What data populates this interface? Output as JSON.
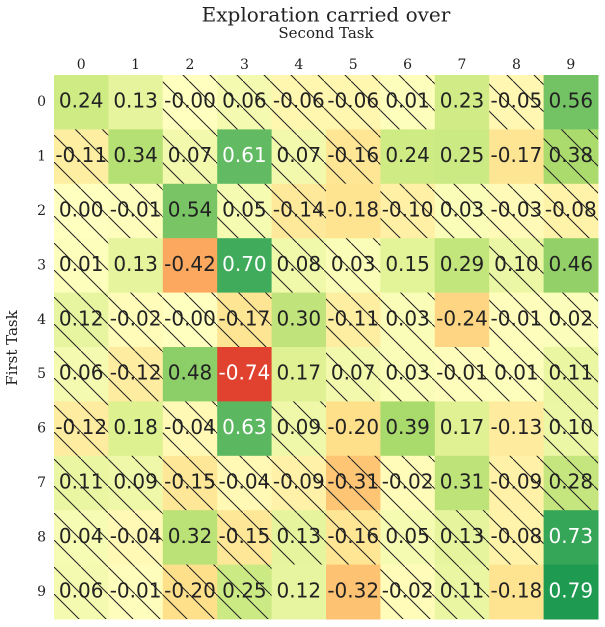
{
  "chart_data": {
    "type": "heatmap",
    "title": "Exploration carried over",
    "x_label": "Second Task",
    "y_label": "First Task",
    "x_categories": [
      "0",
      "1",
      "2",
      "3",
      "4",
      "5",
      "6",
      "7",
      "8",
      "9"
    ],
    "y_categories": [
      "0",
      "1",
      "2",
      "3",
      "4",
      "5",
      "6",
      "7",
      "8",
      "9"
    ],
    "values": [
      [
        0.24,
        0.13,
        0,
        0.06,
        -0.06,
        -0.06,
        0.01,
        0.23,
        -0.05,
        0.56
      ],
      [
        -0.11,
        0.34,
        0.07,
        0.61,
        0.07,
        -0.16,
        0.24,
        0.25,
        -0.17,
        0.38
      ],
      [
        0,
        -0.01,
        0.54,
        0.05,
        -0.14,
        -0.18,
        -0.1,
        0.03,
        -0.03,
        -0.08
      ],
      [
        0.01,
        0.13,
        -0.42,
        0.7,
        0.08,
        0.03,
        0.15,
        0.29,
        0.1,
        0.46
      ],
      [
        0.12,
        -0.02,
        0,
        -0.17,
        0.3,
        -0.11,
        0.03,
        -0.24,
        -0.01,
        0.02
      ],
      [
        0.06,
        -0.12,
        0.48,
        -0.74,
        0.17,
        0.07,
        0.03,
        -0.01,
        0.01,
        0.11
      ],
      [
        -0.12,
        0.18,
        -0.04,
        0.63,
        0.09,
        -0.2,
        0.39,
        0.17,
        -0.13,
        0.1
      ],
      [
        0.11,
        0.09,
        -0.15,
        -0.04,
        -0.09,
        -0.31,
        -0.02,
        0.31,
        -0.09,
        0.28
      ],
      [
        0.04,
        -0.04,
        0.32,
        -0.15,
        0.13,
        -0.16,
        0.05,
        0.13,
        -0.08,
        0.73
      ],
      [
        0.06,
        -0.01,
        -0.2,
        0.25,
        0.12,
        -0.32,
        -0.02,
        0.11,
        -0.18,
        0.79
      ]
    ],
    "value_labels": [
      [
        "0.24",
        "0.13",
        "-0.00",
        "0.06",
        "-0.06",
        "-0.06",
        "0.01",
        "0.23",
        "-0.05",
        "0.56"
      ],
      [
        "-0.11",
        "0.34",
        "0.07",
        "0.61",
        "0.07",
        "-0.16",
        "0.24",
        "0.25",
        "-0.17",
        "0.38"
      ],
      [
        "0.00",
        "-0.01",
        "0.54",
        "0.05",
        "-0.14",
        "-0.18",
        "-0.10",
        "0.03",
        "-0.03",
        "-0.08"
      ],
      [
        "0.01",
        "0.13",
        "-0.42",
        "0.70",
        "0.08",
        "0.03",
        "0.15",
        "0.29",
        "0.10",
        "0.46"
      ],
      [
        "0.12",
        "-0.02",
        "-0.00",
        "-0.17",
        "0.30",
        "-0.11",
        "0.03",
        "-0.24",
        "-0.01",
        "0.02"
      ],
      [
        "0.06",
        "-0.12",
        "0.48",
        "-0.74",
        "0.17",
        "0.07",
        "0.03",
        "-0.01",
        "0.01",
        "0.11"
      ],
      [
        "-0.12",
        "0.18",
        "-0.04",
        "0.63",
        "0.09",
        "-0.20",
        "0.39",
        "0.17",
        "-0.13",
        "0.10"
      ],
      [
        "0.11",
        "0.09",
        "-0.15",
        "-0.04",
        "-0.09",
        "-0.31",
        "-0.02",
        "0.31",
        "-0.09",
        "0.28"
      ],
      [
        "0.04",
        "-0.04",
        "0.32",
        "-0.15",
        "0.13",
        "-0.16",
        "0.05",
        "0.13",
        "-0.08",
        "0.73"
      ],
      [
        "0.06",
        "-0.01",
        "-0.20",
        "0.25",
        "0.12",
        "-0.32",
        "-0.02",
        "0.11",
        "-0.18",
        "0.79"
      ]
    ],
    "hatched": [
      [
        false,
        false,
        true,
        true,
        true,
        true,
        true,
        false,
        true,
        false
      ],
      [
        true,
        false,
        true,
        false,
        true,
        true,
        false,
        false,
        false,
        true
      ],
      [
        true,
        true,
        false,
        true,
        true,
        false,
        true,
        true,
        true,
        true
      ],
      [
        true,
        false,
        false,
        false,
        true,
        true,
        false,
        false,
        true,
        false
      ],
      [
        true,
        true,
        true,
        true,
        false,
        true,
        true,
        false,
        true,
        true
      ],
      [
        true,
        true,
        false,
        false,
        false,
        true,
        true,
        true,
        true,
        true
      ],
      [
        true,
        false,
        true,
        false,
        true,
        false,
        false,
        false,
        false,
        true
      ],
      [
        true,
        true,
        true,
        true,
        true,
        true,
        true,
        false,
        true,
        true
      ],
      [
        true,
        true,
        false,
        true,
        true,
        true,
        true,
        true,
        true,
        false
      ],
      [
        true,
        true,
        true,
        true,
        false,
        false,
        true,
        true,
        false,
        false
      ]
    ],
    "vlim": [
      -1,
      1
    ],
    "colormap": [
      "#a50026",
      "#d73027",
      "#f46d43",
      "#fdae61",
      "#fee08b",
      "#ffffbf",
      "#d9ef8b",
      "#a6d96a",
      "#66bd63",
      "#1a9850",
      "#006837"
    ]
  }
}
